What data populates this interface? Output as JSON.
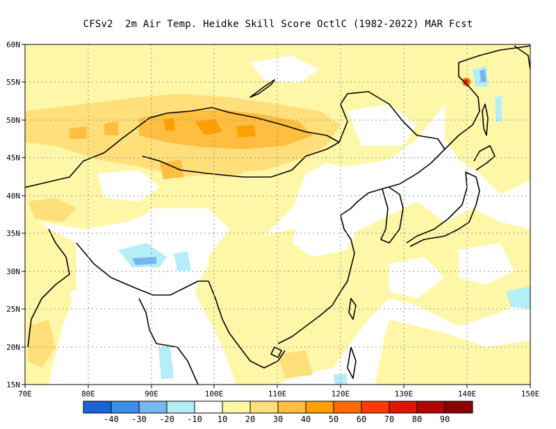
{
  "title": "CFSv2  2m Air Temp. Heidke Skill Score OctlC (1982-2022) MAR Fcst",
  "map": {
    "lon_range": [
      70,
      150
    ],
    "lat_range": [
      15,
      60
    ],
    "lon_ticks": [
      "70E",
      "80E",
      "90E",
      "100E",
      "110E",
      "120E",
      "130E",
      "140E",
      "150E"
    ],
    "lat_ticks": [
      "15N",
      "20N",
      "25N",
      "30N",
      "35N",
      "40N",
      "45N",
      "50N",
      "55N",
      "60N"
    ],
    "gridlines": true
  },
  "colorbar": {
    "colors": [
      "#1a64d6",
      "#3d8ee8",
      "#78b6f2",
      "#b4eef8",
      "#ffffff",
      "#fff7a8",
      "#ffdf7a",
      "#ffbe40",
      "#ffa000",
      "#ff6a00",
      "#ff3a00",
      "#e01400",
      "#b40000",
      "#8a0000"
    ],
    "labels": [
      "-40",
      "-30",
      "-20",
      "-10",
      "10",
      "20",
      "30",
      "40",
      "50",
      "60",
      "70",
      "80",
      "90"
    ]
  }
}
